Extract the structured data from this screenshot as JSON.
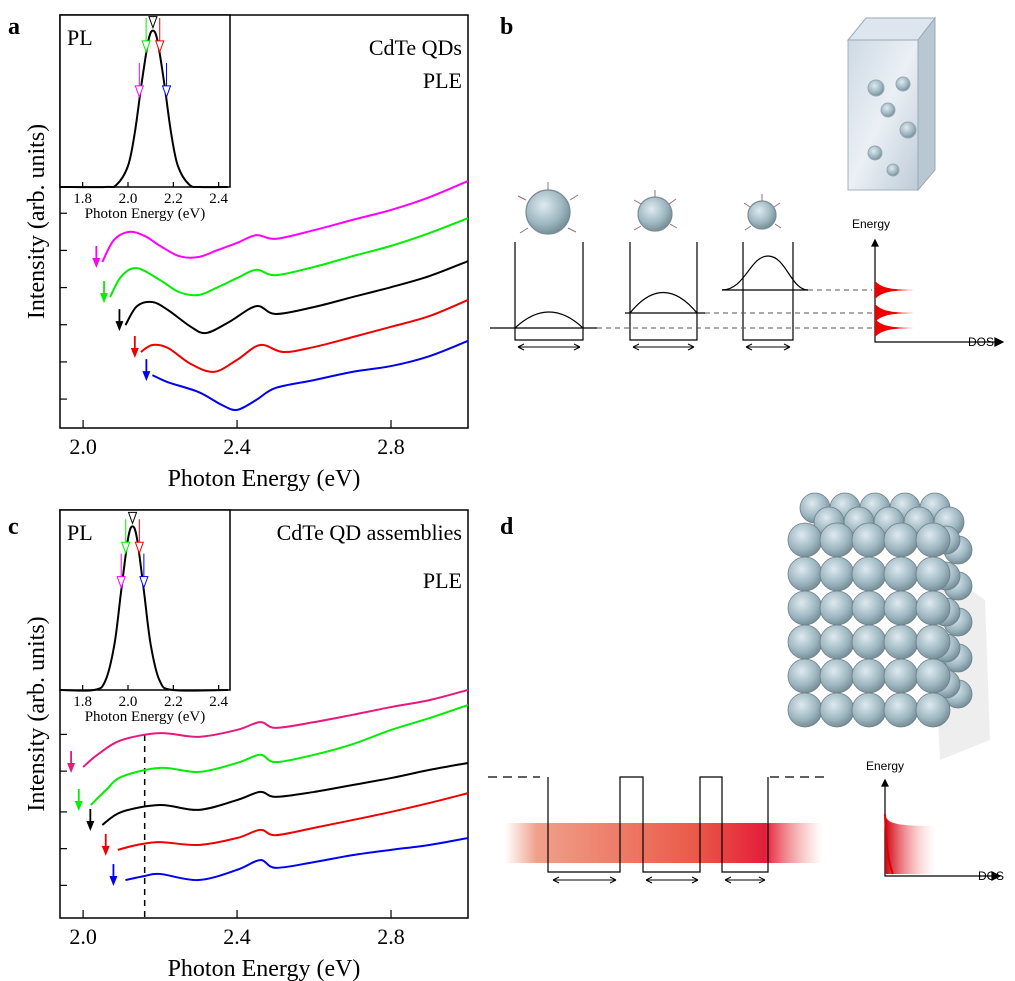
{
  "panel_labels": [
    "a",
    "b",
    "c",
    "d"
  ],
  "chart_data": [
    {
      "type": "line",
      "xlabel": "Photon Energy (eV)",
      "ylabel": "Intensity (arb. units)",
      "annotations": [
        "CdTe QDs",
        "PLE"
      ],
      "xlim": [
        1.94,
        3.0
      ],
      "xticks": [
        {
          "value": 2,
          "label": "2.0"
        },
        2.4,
        2.8
      ],
      "ylim": [
        0,
        10
      ],
      "yticks": [
        0.7,
        1.6,
        2.5,
        3.4,
        4.3,
        5.2
      ],
      "series": [
        {
          "color": "#ff00ff",
          "x": [
            2.05,
            2.08,
            2.12,
            2.16,
            2.2,
            2.25,
            2.3,
            2.35,
            2.4,
            2.45,
            2.5,
            2.6,
            2.7,
            2.8,
            2.9,
            3.0
          ],
          "values": [
            4.02,
            4.55,
            4.75,
            4.65,
            4.41,
            4.16,
            4.14,
            4.31,
            4.48,
            4.67,
            4.58,
            4.79,
            5.04,
            5.28,
            5.59,
            5.98
          ]
        },
        {
          "color": "#00ee00",
          "x": [
            2.07,
            2.1,
            2.14,
            2.2,
            2.25,
            2.3,
            2.35,
            2.4,
            2.45,
            2.5,
            2.6,
            2.7,
            2.8,
            2.9,
            3.0
          ],
          "values": [
            3.17,
            3.68,
            3.87,
            3.58,
            3.29,
            3.22,
            3.41,
            3.63,
            3.83,
            3.7,
            3.9,
            4.16,
            4.41,
            4.72,
            5.08
          ]
        },
        {
          "color": "#000000",
          "x": [
            2.11,
            2.14,
            2.18,
            2.22,
            2.28,
            2.32,
            2.38,
            2.45,
            2.5,
            2.6,
            2.7,
            2.8,
            2.9,
            3.0
          ],
          "values": [
            2.49,
            2.95,
            3.05,
            2.86,
            2.45,
            2.3,
            2.57,
            2.95,
            2.76,
            2.93,
            3.17,
            3.41,
            3.68,
            4.04
          ]
        },
        {
          "color": "#ee0000",
          "x": [
            2.15,
            2.18,
            2.22,
            2.28,
            2.34,
            2.4,
            2.46,
            2.52,
            2.6,
            2.7,
            2.8,
            2.9,
            3.0
          ],
          "values": [
            1.84,
            2.01,
            1.94,
            1.55,
            1.36,
            1.65,
            2.01,
            1.84,
            1.96,
            2.2,
            2.45,
            2.71,
            3.1
          ]
        },
        {
          "color": "#0000ee",
          "x": [
            2.18,
            2.22,
            2.3,
            2.36,
            2.4,
            2.45,
            2.5,
            2.6,
            2.7,
            2.8,
            2.9,
            3.0
          ],
          "values": [
            1.28,
            1.11,
            0.87,
            0.56,
            0.44,
            0.68,
            0.97,
            1.16,
            1.36,
            1.5,
            1.74,
            2.11
          ]
        }
      ]
    },
    {
      "type": "line",
      "label": "PL",
      "xlabel": "Photon Energy (eV)",
      "xlim": [
        1.7,
        2.45
      ],
      "xticks": [
        1.8,
        {
          "value": 2,
          "label": "2.0"
        },
        2.2,
        2.4
      ],
      "ylim": [
        0,
        1.1
      ],
      "series": [
        {
          "color": "#000000",
          "x": [
            1.7,
            1.9,
            1.95,
            2.0,
            2.03,
            2.06,
            2.09,
            2.11,
            2.13,
            2.16,
            2.19,
            2.22,
            2.27,
            2.32,
            2.44
          ],
          "values": [
            0,
            0,
            0.015,
            0.135,
            0.347,
            0.662,
            0.936,
            1,
            0.936,
            0.662,
            0.347,
            0.135,
            0.015,
            0,
            0
          ]
        }
      ],
      "markers": [
        {
          "x": 2.11,
          "color": "#000000"
        },
        {
          "x": 2.08,
          "color": "#00ee00"
        },
        {
          "x": 2.14,
          "color": "#ee0000"
        },
        {
          "x": 2.05,
          "color": "#ff00ff"
        },
        {
          "x": 2.17,
          "color": "#0000ee"
        }
      ]
    },
    {
      "type": "line",
      "xlabel": "Photon Energy (eV)",
      "ylabel": "Intensity (arb. units)",
      "annotations": [
        "CdTe QD assemblies",
        "PLE"
      ],
      "xlim": [
        1.94,
        3.0
      ],
      "xticks": [
        {
          "value": 2,
          "label": "2.0"
        },
        2.4,
        2.8
      ],
      "ylim": [
        0,
        10
      ],
      "yticks": [
        0.8,
        1.7,
        2.6,
        3.6,
        4.5
      ],
      "vline": 2.16,
      "series": [
        {
          "color": "#e8187c",
          "x": [
            2.0,
            2.04,
            2.1,
            2.2,
            2.3,
            2.4,
            2.46,
            2.5,
            2.6,
            2.7,
            2.8,
            2.9,
            3.0
          ],
          "values": [
            3.7,
            4.02,
            4.36,
            4.53,
            4.44,
            4.61,
            4.8,
            4.66,
            4.8,
            4.98,
            5.17,
            5.34,
            5.59
          ]
        },
        {
          "color": "#00ee00",
          "x": [
            2.02,
            2.06,
            2.1,
            2.2,
            2.3,
            2.4,
            2.46,
            2.5,
            2.6,
            2.7,
            2.8,
            2.9,
            3.0
          ],
          "values": [
            2.77,
            3.14,
            3.46,
            3.68,
            3.58,
            3.8,
            4.0,
            3.82,
            4.0,
            4.26,
            4.61,
            4.9,
            5.22
          ]
        },
        {
          "color": "#000000",
          "x": [
            2.05,
            2.1,
            2.2,
            2.3,
            2.4,
            2.46,
            2.5,
            2.6,
            2.7,
            2.8,
            2.9,
            3.0
          ],
          "values": [
            2.28,
            2.6,
            2.77,
            2.65,
            2.89,
            3.09,
            2.97,
            3.09,
            3.26,
            3.43,
            3.63,
            3.8
          ]
        },
        {
          "color": "#ee0000",
          "x": [
            2.09,
            2.14,
            2.2,
            2.3,
            2.4,
            2.46,
            2.5,
            2.6,
            2.7,
            2.8,
            2.9,
            3.0
          ],
          "values": [
            1.67,
            1.79,
            1.86,
            1.79,
            1.96,
            2.16,
            2.03,
            2.21,
            2.4,
            2.6,
            2.82,
            3.06
          ]
        },
        {
          "color": "#0000ee",
          "x": [
            2.11,
            2.16,
            2.2,
            2.3,
            2.4,
            2.46,
            2.5,
            2.6,
            2.7,
            2.8,
            2.9,
            3.0
          ],
          "values": [
            0.93,
            1.03,
            1.08,
            0.93,
            1.18,
            1.42,
            1.23,
            1.37,
            1.54,
            1.67,
            1.79,
            1.96
          ]
        }
      ]
    },
    {
      "type": "line",
      "label": "PL",
      "xlabel": "Photon Energy (eV)",
      "xlim": [
        1.7,
        2.45
      ],
      "xticks": [
        1.8,
        {
          "value": 2,
          "label": "2.0"
        },
        2.2,
        2.4
      ],
      "ylim": [
        0,
        1.1
      ],
      "series": [
        {
          "color": "#000000",
          "x": [
            1.7,
            1.85,
            1.9,
            1.94,
            1.97,
            2.0,
            2.02,
            2.04,
            2.07,
            2.1,
            2.14,
            2.2,
            2.44
          ],
          "values": [
            0,
            0,
            0.056,
            0.278,
            0.607,
            0.923,
            1,
            0.923,
            0.607,
            0.278,
            0.056,
            0,
            0
          ]
        }
      ],
      "markers": [
        {
          "x": 2.02,
          "color": "#000000"
        },
        {
          "x": 1.99,
          "color": "#00ee00"
        },
        {
          "x": 2.05,
          "color": "#ee0000"
        },
        {
          "x": 1.97,
          "color": "#ff00ff"
        },
        {
          "x": 2.07,
          "color": "#0000ee"
        }
      ]
    }
  ],
  "diagrams": {
    "b": {
      "energy_label": "Energy",
      "dos_label": "DOS"
    },
    "d": {
      "energy_label": "Energy",
      "dos_label": "DOS"
    }
  }
}
